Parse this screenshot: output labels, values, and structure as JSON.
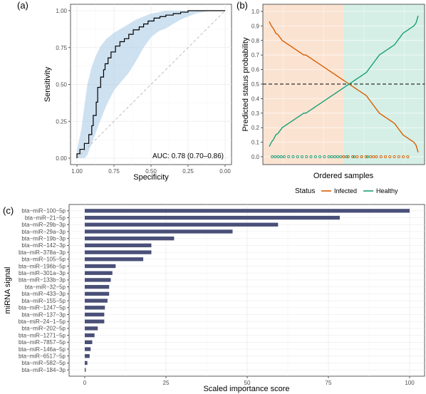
{
  "colors": {
    "infected": "#d95f02",
    "healthy": "#1b9e77",
    "bar": "#4a5078",
    "ci_band": "#a6c8e6",
    "infected_bg": "#fbe3d2",
    "healthy_bg": "#d5efe6",
    "grid": "#ebebeb",
    "panel_border": "#333333"
  },
  "chart_data": [
    {
      "panel": "(a)",
      "type": "line",
      "xlabel": "Specificity",
      "ylabel": "Sensitivity",
      "x_reversed": true,
      "xlim": [
        1.0,
        0.0
      ],
      "ylim": [
        0.0,
        1.0
      ],
      "x_ticks": [
        "1.00",
        "0.75",
        "0.50",
        "0.25",
        "0.00"
      ],
      "x_tick_values": [
        1.0,
        0.75,
        0.5,
        0.25,
        0.0
      ],
      "y_ticks": [
        "0.00",
        "0.25",
        "0.50",
        "0.75",
        "1.00"
      ],
      "y_tick_values": [
        0.0,
        0.25,
        0.5,
        0.75,
        1.0
      ],
      "grid": true,
      "annotation": "AUC: 0.78 (0.70–0.86)",
      "diagonal_reference": true,
      "roc_curve": {
        "specificity": [
          1.0,
          1.0,
          0.98,
          0.98,
          0.95,
          0.95,
          0.92,
          0.92,
          0.9,
          0.9,
          0.89,
          0.89,
          0.87,
          0.87,
          0.86,
          0.86,
          0.84,
          0.84,
          0.82,
          0.82,
          0.81,
          0.81,
          0.79,
          0.79,
          0.77,
          0.77,
          0.74,
          0.74,
          0.71,
          0.71,
          0.68,
          0.68,
          0.65,
          0.65,
          0.62,
          0.62,
          0.58,
          0.58,
          0.55,
          0.55,
          0.52,
          0.52,
          0.48,
          0.48,
          0.44,
          0.44,
          0.4,
          0.4,
          0.35,
          0.35,
          0.3,
          0.3,
          0.25,
          0.25,
          0.18,
          0.18,
          0.0
        ],
        "sensitivity": [
          0.0,
          0.03,
          0.03,
          0.06,
          0.06,
          0.1,
          0.1,
          0.16,
          0.16,
          0.22,
          0.22,
          0.29,
          0.29,
          0.38,
          0.38,
          0.48,
          0.48,
          0.55,
          0.55,
          0.6,
          0.6,
          0.64,
          0.64,
          0.68,
          0.68,
          0.72,
          0.72,
          0.76,
          0.76,
          0.79,
          0.79,
          0.81,
          0.81,
          0.84,
          0.84,
          0.87,
          0.87,
          0.89,
          0.89,
          0.91,
          0.91,
          0.93,
          0.93,
          0.95,
          0.95,
          0.96,
          0.96,
          0.97,
          0.97,
          0.98,
          0.98,
          0.99,
          0.99,
          1.0,
          1.0,
          1.0,
          1.0
        ]
      },
      "ci_band": {
        "specificity": [
          1.0,
          0.97,
          0.95,
          0.93,
          0.9,
          0.87,
          0.84,
          0.8,
          0.75,
          0.7,
          0.65,
          0.6,
          0.55,
          0.5,
          0.45,
          0.4,
          0.35,
          0.3,
          0.25,
          0.2,
          0.1,
          0.0
        ],
        "upper": [
          0.05,
          0.2,
          0.35,
          0.5,
          0.62,
          0.7,
          0.76,
          0.81,
          0.85,
          0.88,
          0.91,
          0.94,
          0.96,
          0.98,
          0.99,
          1.0,
          1.0,
          1.0,
          1.0,
          1.0,
          1.0,
          1.0
        ],
        "lower": [
          0.0,
          0.0,
          0.0,
          0.02,
          0.1,
          0.18,
          0.26,
          0.36,
          0.46,
          0.52,
          0.58,
          0.66,
          0.75,
          0.82,
          0.86,
          0.88,
          0.91,
          0.94,
          0.96,
          0.98,
          1.0,
          1.0
        ]
      }
    },
    {
      "panel": "(b)",
      "type": "line",
      "xlabel": "Ordered samples",
      "ylabel": "Predicted status probability",
      "ylim": [
        0.0,
        1.0
      ],
      "y_ticks": [
        "0.0",
        "0.1",
        "0.2",
        "0.3",
        "0.4",
        "0.5",
        "0.6",
        "0.7",
        "0.8",
        "0.9",
        "1.0"
      ],
      "y_tick_values": [
        0.0,
        0.1,
        0.2,
        0.3,
        0.4,
        0.5,
        0.6,
        0.7,
        0.8,
        0.9,
        1.0
      ],
      "grid": true,
      "threshold": 0.5,
      "background_regions": [
        {
          "status": "Infected",
          "from_fraction": 0.0,
          "to_fraction": 0.5
        },
        {
          "status": "Healthy",
          "from_fraction": 0.5,
          "to_fraction": 1.0
        }
      ],
      "legend": {
        "title": "Status",
        "position": "bottom",
        "entries": [
          "Infected",
          "Healthy"
        ]
      },
      "series": [
        {
          "name": "Infected",
          "color_key": "infected",
          "values": [
            0.93,
            0.9,
            0.88,
            0.85,
            0.84,
            0.82,
            0.8,
            0.79,
            0.78,
            0.77,
            0.76,
            0.75,
            0.74,
            0.73,
            0.72,
            0.71,
            0.7,
            0.7,
            0.69,
            0.68,
            0.67,
            0.66,
            0.65,
            0.64,
            0.63,
            0.62,
            0.61,
            0.6,
            0.59,
            0.58,
            0.57,
            0.56,
            0.55,
            0.54,
            0.53,
            0.52,
            0.51,
            0.5,
            0.49,
            0.48,
            0.47,
            0.46,
            0.45,
            0.44,
            0.43,
            0.42,
            0.4,
            0.38,
            0.36,
            0.34,
            0.32,
            0.3,
            0.29,
            0.28,
            0.27,
            0.26,
            0.25,
            0.24,
            0.23,
            0.21,
            0.19,
            0.17,
            0.15,
            0.14,
            0.13,
            0.12,
            0.11,
            0.1,
            0.08,
            0.03
          ]
        },
        {
          "name": "Healthy",
          "color_key": "healthy",
          "values": [
            0.07,
            0.1,
            0.12,
            0.15,
            0.16,
            0.18,
            0.2,
            0.21,
            0.22,
            0.23,
            0.24,
            0.25,
            0.26,
            0.27,
            0.28,
            0.29,
            0.3,
            0.3,
            0.31,
            0.32,
            0.33,
            0.34,
            0.35,
            0.36,
            0.37,
            0.38,
            0.39,
            0.4,
            0.41,
            0.42,
            0.43,
            0.44,
            0.45,
            0.46,
            0.47,
            0.48,
            0.49,
            0.5,
            0.51,
            0.52,
            0.53,
            0.54,
            0.55,
            0.56,
            0.57,
            0.58,
            0.6,
            0.62,
            0.64,
            0.66,
            0.68,
            0.7,
            0.71,
            0.72,
            0.73,
            0.74,
            0.75,
            0.76,
            0.77,
            0.79,
            0.81,
            0.83,
            0.85,
            0.86,
            0.87,
            0.88,
            0.89,
            0.9,
            0.92,
            0.97
          ]
        }
      ],
      "rug": {
        "healthy_positions": [
          0.02,
          0.04,
          0.06,
          0.08,
          0.1,
          0.13,
          0.16,
          0.19,
          0.22,
          0.25,
          0.28,
          0.31,
          0.34,
          0.37,
          0.4,
          0.42,
          0.44,
          0.46,
          0.48,
          0.5,
          0.52,
          0.57,
          0.62,
          0.66
        ],
        "infected_positions": [
          0.5,
          0.53,
          0.56,
          0.59,
          0.62,
          0.65,
          0.68,
          0.7,
          0.72,
          0.75,
          0.78,
          0.81,
          0.84,
          0.87,
          0.9,
          0.93
        ]
      }
    },
    {
      "panel": "(c)",
      "type": "bar",
      "orientation": "horizontal",
      "xlabel": "Scaled importance score",
      "ylabel": "miRNA signal",
      "xlim": [
        0,
        100
      ],
      "x_ticks": [
        "0",
        "25",
        "50",
        "75",
        "100"
      ],
      "x_tick_values": [
        0,
        25,
        50,
        75,
        100
      ],
      "grid": true,
      "categories": [
        "bta−miR−100−5p",
        "bta−miR−21−5p",
        "bta−miR−29b−3p",
        "bta−miR−29a−3p",
        "bta−miR−19b−3p",
        "bta−miR−142−3p",
        "bta−miR−378a−3p",
        "bta−miR−105−5p",
        "bta−miR−196b−5p",
        "bta−miR−301a−3p",
        "bta−miR−133b−3p",
        "bta−miR−32−5p",
        "bta−miR−433−3p",
        "bta−miR−155−5p",
        "bta−miR−1247−5p",
        "bta−miR−137−3p",
        "bta−miR−24−1−5p",
        "bta−miR−202−5p",
        "bta−miR−1271−5p",
        "bta−miR−7857−5p",
        "bta−miR−146a−5p",
        "bta−miR−6517−5p",
        "bta−miR−582−5p",
        "bta−miR−184−3p"
      ],
      "values": [
        100,
        78.5,
        59.5,
        45.5,
        27.5,
        20.5,
        20.5,
        18,
        9.5,
        8.5,
        8,
        7.5,
        7.5,
        7,
        6.2,
        6,
        6,
        4,
        3,
        2.3,
        1.8,
        1.5,
        0.8,
        0.3
      ]
    }
  ]
}
